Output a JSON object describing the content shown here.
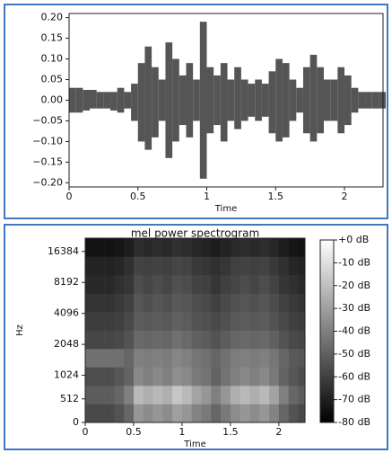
{
  "chart_data": [
    {
      "type": "waveform",
      "xlabel": "Time",
      "color": "#555555",
      "x": [
        0,
        0.05,
        0.1,
        0.15,
        0.2,
        0.25,
        0.3,
        0.35,
        0.4,
        0.45,
        0.5,
        0.55,
        0.6,
        0.65,
        0.7,
        0.75,
        0.8,
        0.85,
        0.9,
        0.95,
        1.0,
        1.05,
        1.1,
        1.15,
        1.2,
        1.25,
        1.3,
        1.35,
        1.4,
        1.45,
        1.5,
        1.55,
        1.6,
        1.65,
        1.7,
        1.75,
        1.8,
        1.85,
        1.9,
        1.95,
        2.0,
        2.05,
        2.1,
        2.15,
        2.2,
        2.25
      ],
      "envelope_max": [
        0.03,
        0.03,
        0.025,
        0.025,
        0.02,
        0.02,
        0.02,
        0.03,
        0.02,
        0.04,
        0.09,
        0.13,
        0.08,
        0.05,
        0.14,
        0.1,
        0.06,
        0.09,
        0.05,
        0.19,
        0.08,
        0.06,
        0.09,
        0.05,
        0.08,
        0.05,
        0.04,
        0.05,
        0.04,
        0.07,
        0.1,
        0.09,
        0.05,
        0.03,
        0.08,
        0.11,
        0.08,
        0.05,
        0.05,
        0.08,
        0.06,
        0.03,
        0.02,
        0.02,
        0.02,
        0.02
      ],
      "envelope_min": [
        -0.03,
        -0.03,
        -0.025,
        -0.02,
        -0.02,
        -0.02,
        -0.025,
        -0.03,
        -0.02,
        -0.05,
        -0.1,
        -0.12,
        -0.09,
        -0.05,
        -0.14,
        -0.1,
        -0.06,
        -0.09,
        -0.05,
        -0.19,
        -0.08,
        -0.06,
        -0.1,
        -0.05,
        -0.07,
        -0.05,
        -0.04,
        -0.05,
        -0.04,
        -0.08,
        -0.1,
        -0.09,
        -0.05,
        -0.03,
        -0.08,
        -0.1,
        -0.08,
        -0.05,
        -0.05,
        -0.08,
        -0.06,
        -0.03,
        -0.02,
        -0.02,
        -0.02,
        -0.02
      ],
      "xlim": [
        0,
        2.28
      ],
      "xticks": [
        0,
        0.5,
        1,
        1.5,
        2
      ],
      "ylim": [
        -0.21,
        0.21
      ],
      "yticks": [
        {
          "value": 0.2,
          "label": "0.20"
        },
        {
          "value": 0.15,
          "label": "0.15"
        },
        {
          "value": 0.1,
          "label": "0.10"
        },
        {
          "value": 0.05,
          "label": "0.05"
        },
        {
          "value": 0,
          "label": "0.00"
        },
        {
          "value": -0.05,
          "label": "−0.05"
        },
        {
          "value": -0.1,
          "label": "−0.10"
        },
        {
          "value": -0.15,
          "label": "−0.15"
        },
        {
          "value": -0.2,
          "label": "−0.20"
        }
      ]
    },
    {
      "type": "spectrogram",
      "title": "mel power spectrogram",
      "xlabel": "Time",
      "ylabel": "Hz",
      "xlim": [
        0,
        2.27
      ],
      "xticks": [
        0,
        0.5,
        1,
        1.5,
        2
      ],
      "ylim": [
        0,
        22050
      ],
      "yscale": "mel",
      "yticks": [
        0,
        512,
        1024,
        2048,
        4096,
        8192,
        16384
      ],
      "xbins": [
        0,
        0.1,
        0.2,
        0.3,
        0.4,
        0.5,
        0.6,
        0.7,
        0.8,
        0.9,
        1.0,
        1.1,
        1.2,
        1.3,
        1.4,
        1.5,
        1.6,
        1.7,
        1.8,
        1.9,
        2.0,
        2.1,
        2.2,
        2.27
      ],
      "ybins": [
        0,
        400,
        800,
        1229,
        1856,
        2805,
        4240,
        6404,
        9678,
        14625,
        22050
      ],
      "z": [
        [
          -57,
          -57,
          -57,
          -54,
          -48,
          -33,
          -36,
          -33,
          -36,
          -30,
          -33,
          -39,
          -42,
          -48,
          -42,
          -36,
          -33,
          -36,
          -33,
          -39,
          -48,
          -54,
          -57
        ],
        [
          -51,
          -51,
          -51,
          -48,
          -40,
          -22,
          -25,
          -22,
          -25,
          -18,
          -22,
          -29,
          -33,
          -40,
          -33,
          -25,
          -22,
          -25,
          -22,
          -29,
          -40,
          -48,
          -51
        ],
        [
          -56,
          -56,
          -56,
          -53,
          -49,
          -37,
          -40,
          -37,
          -40,
          -35,
          -37,
          -42,
          -44,
          -49,
          -44,
          -40,
          -37,
          -40,
          -37,
          -42,
          -49,
          -53,
          -56
        ],
        [
          -45,
          -45,
          -45,
          -45,
          -48,
          -40,
          -41,
          -40,
          -41,
          -38,
          -40,
          -43,
          -45,
          -48,
          -45,
          -41,
          -40,
          -41,
          -40,
          -43,
          -48,
          -52,
          -53
        ],
        [
          -58,
          -58,
          -58,
          -57,
          -54,
          -47,
          -48,
          -47,
          -48,
          -45,
          -47,
          -50,
          -51,
          -54,
          -51,
          -48,
          -47,
          -48,
          -47,
          -50,
          -54,
          -57,
          -58
        ],
        [
          -61,
          -61,
          -61,
          -60,
          -57,
          -51,
          -52,
          -51,
          -52,
          -50,
          -51,
          -54,
          -55,
          -57,
          -55,
          -52,
          -51,
          -52,
          -51,
          -54,
          -57,
          -60,
          -61
        ],
        [
          -64,
          -64,
          -64,
          -62,
          -60,
          -53,
          -55,
          -53,
          -55,
          -52,
          -53,
          -56,
          -57,
          -60,
          -57,
          -55,
          -53,
          -55,
          -53,
          -56,
          -60,
          -62,
          -64
        ],
        [
          -67,
          -67,
          -67,
          -65,
          -63,
          -56,
          -58,
          -56,
          -58,
          -55,
          -56,
          -59,
          -60,
          -63,
          -60,
          -58,
          -56,
          -58,
          -56,
          -59,
          -63,
          -65,
          -67
        ],
        [
          -69,
          -69,
          -69,
          -68,
          -65,
          -59,
          -60,
          -59,
          -60,
          -58,
          -59,
          -62,
          -63,
          -65,
          -63,
          -60,
          -59,
          -60,
          -59,
          -62,
          -65,
          -68,
          -69
        ],
        [
          -74,
          -74,
          -74,
          -73,
          -71,
          -66,
          -67,
          -66,
          -67,
          -65,
          -66,
          -68,
          -69,
          -71,
          -69,
          -67,
          -66,
          -67,
          -66,
          -68,
          -71,
          -73,
          -74
        ]
      ],
      "cmap": "gray",
      "colorbar": {
        "clim": [
          -80,
          0
        ],
        "ticks": [
          {
            "value": 0,
            "label": "+0 dB"
          },
          {
            "value": -10,
            "label": "-10 dB"
          },
          {
            "value": -20,
            "label": "-20 dB"
          },
          {
            "value": -30,
            "label": "-30 dB"
          },
          {
            "value": -40,
            "label": "-40 dB"
          },
          {
            "value": -50,
            "label": "-50 dB"
          },
          {
            "value": -60,
            "label": "-60 dB"
          },
          {
            "value": -70,
            "label": "-70 dB"
          },
          {
            "value": -80,
            "label": "-80 dB"
          }
        ]
      }
    }
  ]
}
